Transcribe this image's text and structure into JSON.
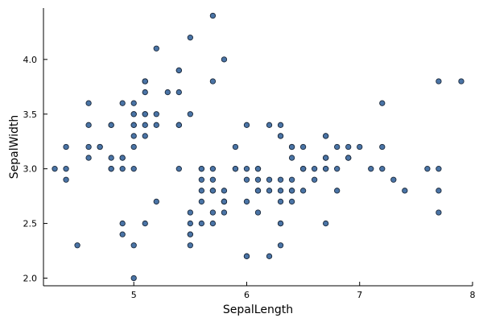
{
  "chart_data": {
    "type": "scatter",
    "xlabel": "SepalLength",
    "ylabel": "SepalWidth",
    "xlim": [
      4.2,
      8.0
    ],
    "ylim": [
      1.93,
      4.47
    ],
    "xticks": [
      5,
      6,
      7,
      8
    ],
    "yticks": [
      2.0,
      2.5,
      3.0,
      3.5,
      4.0
    ],
    "xtick_labels": [
      "5",
      "6",
      "7",
      "8"
    ],
    "ytick_labels": [
      "2.0",
      "2.5",
      "3.0",
      "3.5",
      "4.0"
    ],
    "grid": false,
    "legend": "none",
    "marker_color": "#4a74a6",
    "marker_edge_color": "#1c2a3c",
    "series": [
      {
        "x": [
          5.1,
          4.9,
          4.7,
          4.6,
          5.0,
          5.4,
          4.6,
          5.0,
          4.4,
          4.9,
          5.4,
          4.8,
          4.8,
          4.3,
          5.8,
          5.7,
          5.4,
          5.1,
          5.7,
          5.1,
          5.4,
          5.1,
          4.6,
          5.1,
          4.8,
          5.0,
          5.0,
          5.2,
          5.2,
          4.7,
          4.8,
          5.4,
          5.2,
          5.5,
          4.9,
          5.0,
          5.5,
          4.9,
          4.4,
          5.1,
          5.0,
          4.5,
          4.4,
          5.0,
          5.1,
          4.8,
          5.1,
          4.6,
          5.3,
          5.0,
          7.0,
          6.4,
          6.9,
          5.5,
          6.5,
          5.7,
          6.3,
          4.9,
          6.6,
          5.2,
          5.0,
          5.9,
          6.0,
          6.1,
          5.6,
          6.7,
          5.6,
          5.8,
          6.2,
          5.6,
          5.9,
          6.1,
          6.3,
          6.1,
          6.4,
          6.6,
          6.8,
          6.7,
          6.0,
          5.7,
          5.5,
          5.5,
          5.8,
          6.0,
          5.4,
          6.0,
          6.7,
          6.3,
          5.6,
          5.5,
          5.5,
          6.1,
          5.8,
          5.0,
          5.6,
          5.7,
          5.7,
          6.2,
          5.1,
          5.7,
          6.3,
          5.8,
          7.1,
          6.3,
          6.5,
          7.6,
          4.9,
          7.3,
          6.7,
          7.2,
          6.5,
          6.4,
          6.8,
          5.7,
          5.8,
          6.4,
          6.5,
          7.7,
          7.7,
          6.0,
          6.9,
          5.6,
          7.7,
          6.3,
          6.7,
          7.2,
          6.2,
          6.1,
          6.4,
          7.2,
          7.4,
          7.9,
          6.4,
          6.3,
          6.1,
          7.7,
          6.3,
          6.4,
          6.0,
          6.9,
          6.7,
          6.9,
          5.8,
          6.8,
          6.7,
          6.7,
          6.3,
          6.5,
          6.2,
          5.9
        ],
        "y": [
          3.5,
          3.0,
          3.2,
          3.1,
          3.6,
          3.9,
          3.4,
          3.4,
          2.9,
          3.1,
          3.7,
          3.4,
          3.0,
          3.0,
          4.0,
          4.4,
          3.9,
          3.5,
          3.8,
          3.8,
          3.4,
          3.7,
          3.6,
          3.3,
          3.4,
          3.0,
          3.4,
          3.5,
          3.4,
          3.2,
          3.1,
          3.4,
          4.1,
          4.2,
          3.1,
          3.2,
          3.5,
          3.6,
          3.0,
          3.4,
          3.5,
          2.3,
          3.2,
          3.5,
          3.8,
          3.0,
          3.8,
          3.2,
          3.7,
          3.3,
          3.2,
          3.2,
          3.1,
          2.3,
          2.8,
          2.8,
          3.3,
          2.4,
          2.9,
          2.7,
          2.0,
          3.0,
          2.2,
          2.9,
          2.9,
          3.1,
          3.0,
          2.7,
          2.2,
          2.5,
          3.2,
          2.8,
          2.5,
          2.8,
          2.9,
          3.0,
          2.8,
          3.0,
          2.9,
          2.6,
          2.4,
          2.4,
          2.7,
          2.7,
          3.0,
          3.4,
          3.1,
          2.3,
          3.0,
          2.5,
          2.6,
          3.0,
          2.6,
          2.3,
          2.7,
          3.0,
          2.9,
          2.9,
          2.5,
          2.8,
          3.3,
          2.7,
          3.0,
          2.9,
          3.0,
          3.0,
          2.5,
          2.9,
          2.5,
          3.6,
          3.2,
          2.7,
          3.0,
          2.5,
          2.8,
          3.2,
          3.0,
          3.8,
          2.6,
          2.2,
          3.2,
          2.8,
          2.8,
          2.7,
          3.3,
          3.2,
          2.8,
          3.0,
          2.8,
          3.0,
          2.8,
          3.8,
          2.8,
          2.8,
          2.6,
          3.0,
          3.4,
          3.1,
          3.0,
          3.1,
          3.1,
          3.1,
          2.7,
          3.2,
          3.3,
          3.0,
          2.5,
          3.0,
          3.4,
          3.0
        ]
      }
    ]
  }
}
